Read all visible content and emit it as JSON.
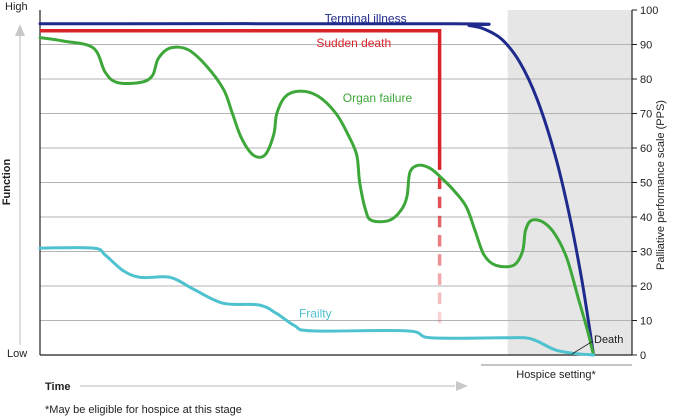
{
  "chart_data": {
    "type": "line",
    "ylabel_left": "Function",
    "ylabel_left_high": "High",
    "ylabel_left_low": "Low",
    "ylabel_right": "Palliative performance scale (PPS)",
    "xlabel": "Time",
    "ylim": [
      0,
      100
    ],
    "yticks": [
      "0",
      "10",
      "20",
      "30",
      "40",
      "50",
      "60",
      "70",
      "80",
      "90",
      "100"
    ],
    "grid": true,
    "x_range": [
      0,
      100
    ],
    "hospice_region": {
      "x_start": 79,
      "x_end": 100,
      "label": "Hospice setting*",
      "color": "#e6e6e6"
    },
    "footnote": "*May be eligible for hospice at this stage",
    "death_label": "Death",
    "death_point": {
      "x": 93.5,
      "y": 0
    },
    "series": [
      {
        "name": "Terminal illness",
        "color": "#1e2a8c",
        "points": [
          [
            0,
            96
          ],
          [
            70,
            96
          ],
          [
            72.5,
            95.5
          ],
          [
            75,
            94.5
          ],
          [
            78,
            91.5
          ],
          [
            81,
            85
          ],
          [
            84,
            74
          ],
          [
            87,
            58
          ],
          [
            89.5,
            40
          ],
          [
            91.5,
            22
          ],
          [
            92.8,
            8
          ],
          [
            93.5,
            0
          ]
        ]
      },
      {
        "name": "Sudden death",
        "color": "#d9242a",
        "points": [
          [
            0,
            94
          ],
          [
            67.5,
            94
          ],
          [
            67.5,
            57
          ]
        ],
        "dashed_drop": {
          "x": 67.5,
          "from": 57,
          "to": 7
        }
      },
      {
        "name": "Organ failure",
        "color": "#3ea73a",
        "points": [
          [
            0,
            92
          ],
          [
            4,
            91
          ],
          [
            9,
            89
          ],
          [
            11,
            82
          ],
          [
            13,
            79
          ],
          [
            17,
            79
          ],
          [
            19,
            81
          ],
          [
            20,
            86
          ],
          [
            22,
            89
          ],
          [
            25,
            88.5
          ],
          [
            28,
            84
          ],
          [
            31,
            77
          ],
          [
            32.5,
            70
          ],
          [
            34,
            63
          ],
          [
            36,
            58
          ],
          [
            38,
            58
          ],
          [
            39.5,
            64
          ],
          [
            40,
            70
          ],
          [
            41.5,
            75
          ],
          [
            44,
            76.5
          ],
          [
            47,
            75
          ],
          [
            50,
            70
          ],
          [
            52,
            64
          ],
          [
            53.5,
            58
          ],
          [
            54,
            50
          ],
          [
            55,
            42
          ],
          [
            56,
            39
          ],
          [
            59,
            39
          ],
          [
            61,
            42
          ],
          [
            62,
            46
          ],
          [
            62.5,
            53
          ],
          [
            64,
            55
          ],
          [
            66,
            54
          ],
          [
            68,
            51
          ],
          [
            70,
            47.5
          ],
          [
            72,
            43
          ],
          [
            73.5,
            36
          ],
          [
            75,
            29
          ],
          [
            77,
            26
          ],
          [
            80,
            26
          ],
          [
            81.5,
            30
          ],
          [
            82,
            36
          ],
          [
            83,
            39
          ],
          [
            85,
            38.5
          ],
          [
            87,
            35
          ],
          [
            89,
            28
          ],
          [
            91,
            16
          ],
          [
            92.5,
            7
          ],
          [
            93.5,
            0
          ]
        ]
      },
      {
        "name": "Frailty",
        "color": "#4ec2ce",
        "points": [
          [
            0,
            31
          ],
          [
            9,
            31
          ],
          [
            11,
            29
          ],
          [
            14,
            24.5
          ],
          [
            17,
            22.5
          ],
          [
            22,
            22.5
          ],
          [
            26,
            19
          ],
          [
            31,
            15
          ],
          [
            37,
            14.5
          ],
          [
            40,
            12
          ],
          [
            43,
            8.5
          ],
          [
            46,
            7
          ],
          [
            62,
            7
          ],
          [
            66,
            5
          ],
          [
            78,
            5
          ],
          [
            82,
            5
          ],
          [
            84,
            4
          ],
          [
            87,
            1.5
          ],
          [
            90,
            0.5
          ],
          [
            93.5,
            0
          ]
        ]
      }
    ]
  }
}
